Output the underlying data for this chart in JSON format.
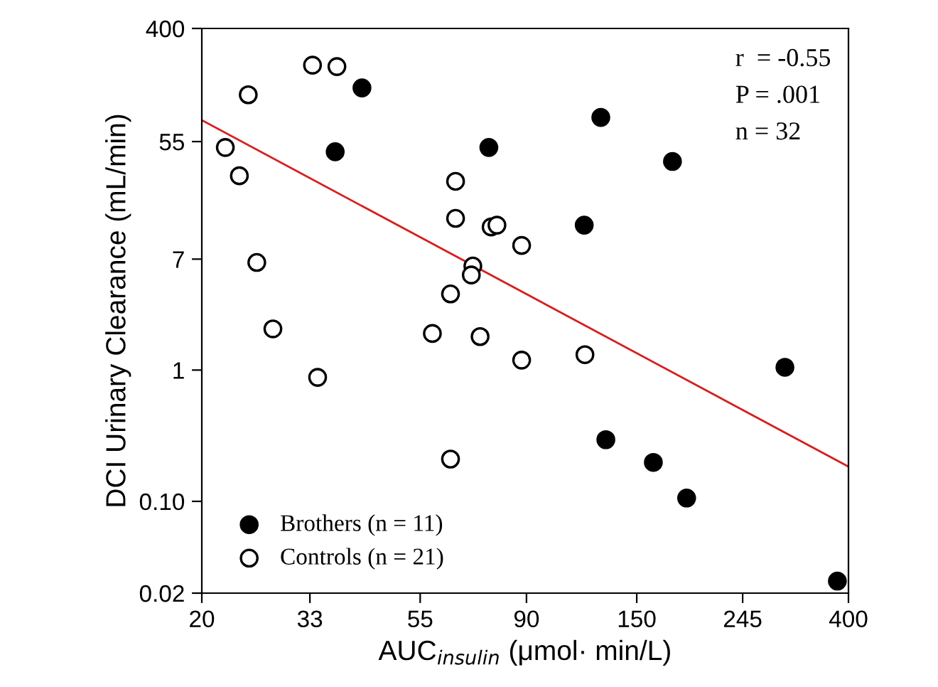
{
  "chart_data": {
    "type": "scatter",
    "xlabel": "AUC$_{insulin}$ (μmol· min/L)",
    "ylabel": "DCI Urinary Clearance (mL/min)",
    "log": "xy",
    "marker": "circle",
    "grid": false,
    "legend": "bottom left",
    "xlim": [
      20,
      400
    ],
    "ylim": [
      0.02,
      400
    ],
    "xticks": [
      20,
      33,
      55,
      90,
      150,
      245,
      400
    ],
    "yticks": [
      {
        "value": 0.02,
        "label": "0.02"
      },
      {
        "value": 0.1,
        "label": "0.10"
      },
      1,
      7,
      55,
      400
    ],
    "annotations": [
      "r  = -0.55",
      "P = .001",
      "n = 32"
    ],
    "series": [
      {
        "name": "Brothers (n = 11)",
        "color": "#000000",
        "x": [
          42.0,
          37.1,
          75.6,
          127,
          177,
          117.6,
          298,
          130,
          162,
          189,
          380
        ],
        "values": [
          141,
          46,
          49.6,
          84,
          38.8,
          12.7,
          1.05,
          0.295,
          0.198,
          0.106,
          0.0247
        ]
      },
      {
        "name": "Controls (n = 21)",
        "color": "#000000",
        "x": [
          33.4,
          37.4,
          24.8,
          22.3,
          23.8,
          25.8,
          64.8,
          64.8,
          76.4,
          78.5,
          88,
          70.2,
          69.7,
          63.3,
          58.2,
          72.6,
          27.8,
          34.2,
          88,
          118,
          63.3
        ],
        "values": [
          210,
          205,
          125,
          49.6,
          30.2,
          6.6,
          27.4,
          14.3,
          12.3,
          12.7,
          8.9,
          6.2,
          5.3,
          3.8,
          1.9,
          1.8,
          2.06,
          0.88,
          1.19,
          1.31,
          0.21
        ]
      },
      {
        "type": "line",
        "color": "#d62020",
        "marker": "none",
        "x": [
          20,
          400
        ],
        "values": [
          80,
          0.184
        ]
      }
    ]
  }
}
